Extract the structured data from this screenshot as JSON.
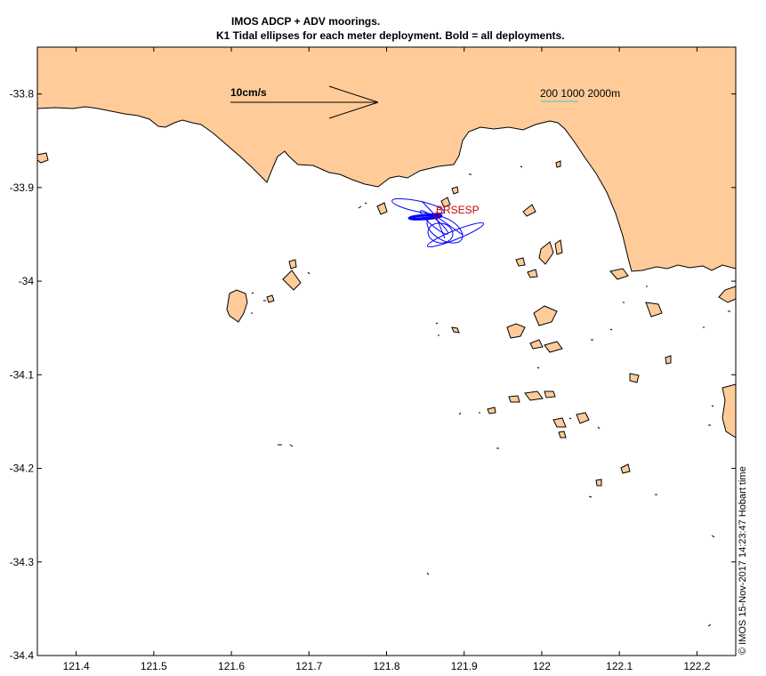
{
  "title": {
    "line1": "IMOS ADCP + ADV moorings.",
    "line2": "K1 Tidal ellipses for each meter deployment. Bold = all deployments."
  },
  "map": {
    "x_ticks": [
      "121.4",
      "121.5",
      "121.6",
      "121.7",
      "121.8",
      "121.9",
      "122",
      "122.1",
      "122.2"
    ],
    "y_ticks": [
      "-33.8",
      "-33.9",
      "-34",
      "-34.1",
      "-34.2",
      "-34.3",
      "-34.4"
    ],
    "x_range": [
      121.35,
      122.25
    ],
    "y_range": [
      -34.4,
      -33.75
    ],
    "land_color": "#ffcc99",
    "ellipse_color": "#0000ff",
    "station_color": "#cc0000"
  },
  "scale": {
    "velocity_label": "10cm/s",
    "depth_label": "200 1000 2000m",
    "depth_line_color": "#33cccc"
  },
  "station": {
    "label": "BRSESP",
    "lon": 121.88,
    "lat": -33.93
  },
  "stamp": "© IMOS 15-Nov-2017 14:23:47 Hobart time"
}
